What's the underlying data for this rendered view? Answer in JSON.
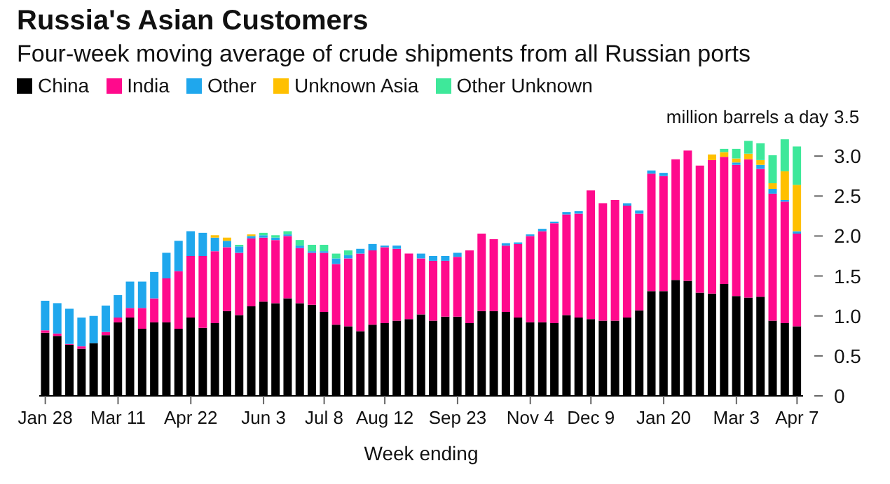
{
  "chart_data": {
    "type": "bar",
    "title": "Russia's Asian Customers",
    "subtitle": "Four-week moving average of crude shipments from all Russian ports",
    "xlabel": "Week ending",
    "stacked": true,
    "legend": "top left",
    "grid": false,
    "categories": [
      "Jan 28",
      null,
      null,
      null,
      null,
      null,
      "Mar 11",
      null,
      null,
      null,
      null,
      null,
      "Apr 22",
      null,
      null,
      null,
      null,
      null,
      "Jun 3",
      null,
      null,
      null,
      null,
      "Jul 8",
      null,
      null,
      null,
      null,
      "Aug 12",
      null,
      null,
      null,
      null,
      null,
      "Sep 23",
      null,
      null,
      null,
      null,
      null,
      "Nov 4",
      null,
      null,
      null,
      null,
      "Dec 9",
      null,
      null,
      null,
      null,
      null,
      "Jan 20",
      null,
      null,
      null,
      null,
      null,
      "Mar 3",
      null,
      null,
      null,
      null,
      "Apr 7"
    ],
    "ylabel": "million barrels a day",
    "ylim": [
      0,
      3.5
    ],
    "yticks": [
      0,
      0.5,
      {
        "value": 1,
        "label": "1.0"
      },
      1.5,
      {
        "value": 2,
        "label": "2.0"
      },
      2.5,
      {
        "value": 3,
        "label": "3.0"
      },
      3.5
    ],
    "series": [
      {
        "name": "China",
        "color": "#000000",
        "values": [
          0.79,
          0.75,
          0.64,
          0.59,
          0.66,
          0.76,
          0.92,
          0.98,
          0.84,
          0.92,
          0.92,
          0.84,
          0.98,
          0.85,
          0.91,
          1.06,
          1.01,
          1.12,
          1.18,
          1.16,
          1.22,
          1.16,
          1.14,
          1.05,
          0.89,
          0.87,
          0.81,
          0.89,
          0.91,
          0.94,
          0.96,
          1.02,
          0.94,
          0.99,
          0.99,
          0.91,
          1.06,
          1.06,
          1.05,
          0.98,
          0.92,
          0.92,
          0.91,
          1.01,
          0.98,
          0.96,
          0.94,
          0.94,
          0.98,
          1.07,
          1.31,
          1.31,
          1.45,
          1.44,
          1.29,
          1.28,
          1.4,
          1.25,
          1.23,
          1.24,
          0.94,
          0.91,
          0.87
        ]
      },
      {
        "name": "India",
        "color": "#ff0a8c",
        "values": [
          0.03,
          0.03,
          0.01,
          0.03,
          0,
          0.04,
          0.06,
          0.12,
          0.26,
          0.3,
          0.55,
          0.72,
          0.77,
          0.9,
          0.9,
          0.8,
          0.78,
          0.85,
          0.8,
          0.79,
          0.78,
          0.69,
          0.65,
          0.74,
          0.76,
          0.85,
          0.97,
          0.93,
          0.95,
          0.9,
          0.82,
          0.7,
          0.75,
          0.7,
          0.75,
          0.91,
          0.97,
          0.9,
          0.83,
          0.92,
          1.08,
          1.14,
          1.25,
          1.26,
          1.3,
          1.61,
          1.47,
          1.51,
          1.4,
          1.21,
          1.47,
          1.44,
          1.51,
          1.63,
          1.59,
          1.67,
          1.59,
          1.64,
          1.73,
          1.6,
          1.59,
          1.52,
          1.16
        ]
      },
      {
        "name": "Other",
        "color": "#1fa7ed",
        "values": [
          0.37,
          0.38,
          0.44,
          0.36,
          0.34,
          0.33,
          0.28,
          0.33,
          0.33,
          0.33,
          0.32,
          0.38,
          0.31,
          0.29,
          0.17,
          0.08,
          0.08,
          0.03,
          0.03,
          0.03,
          0.02,
          0.03,
          0.02,
          0.02,
          0.07,
          0.04,
          0.06,
          0.08,
          0.02,
          0.04,
          0,
          0.06,
          0.06,
          0.06,
          0.05,
          0,
          0,
          0,
          0.03,
          0.02,
          0.02,
          0.03,
          0.02,
          0.03,
          0.03,
          0,
          0,
          0,
          0.03,
          0.04,
          0.04,
          0.04,
          0,
          0,
          0,
          0,
          0,
          0.03,
          0,
          0.05,
          0.06,
          0.02,
          0.03
        ]
      },
      {
        "name": "Unknown Asia",
        "color": "#ffc000",
        "values": [
          0,
          0,
          0,
          0,
          0,
          0,
          0,
          0,
          0,
          0,
          0,
          0,
          0,
          0,
          0.03,
          0.04,
          0,
          0.02,
          0,
          0,
          0,
          0,
          0,
          0,
          0,
          0,
          0,
          0,
          0,
          0,
          0,
          0,
          0,
          0,
          0,
          0,
          0,
          0,
          0,
          0,
          0,
          0,
          0,
          0,
          0,
          0,
          0,
          0,
          0,
          0,
          0,
          0,
          0,
          0,
          0,
          0.07,
          0.06,
          0.05,
          0.07,
          0.06,
          0.07,
          0.36,
          0.58
        ]
      },
      {
        "name": "Other Unknown",
        "color": "#3ee89a",
        "values": [
          0,
          0,
          0,
          0,
          0,
          0,
          0,
          0,
          0,
          0,
          0,
          0,
          0,
          0,
          0,
          0,
          0.02,
          0,
          0.03,
          0.03,
          0.04,
          0.07,
          0.08,
          0.08,
          0.06,
          0.06,
          0,
          0,
          0,
          0,
          0,
          0,
          0,
          0,
          0,
          0,
          0,
          0,
          0,
          0,
          0,
          0,
          0,
          0,
          0,
          0,
          0,
          0,
          0,
          0,
          0,
          0,
          0,
          0,
          0,
          0,
          0.04,
          0.12,
          0.16,
          0.21,
          0.35,
          0.4,
          0.48
        ]
      }
    ]
  }
}
